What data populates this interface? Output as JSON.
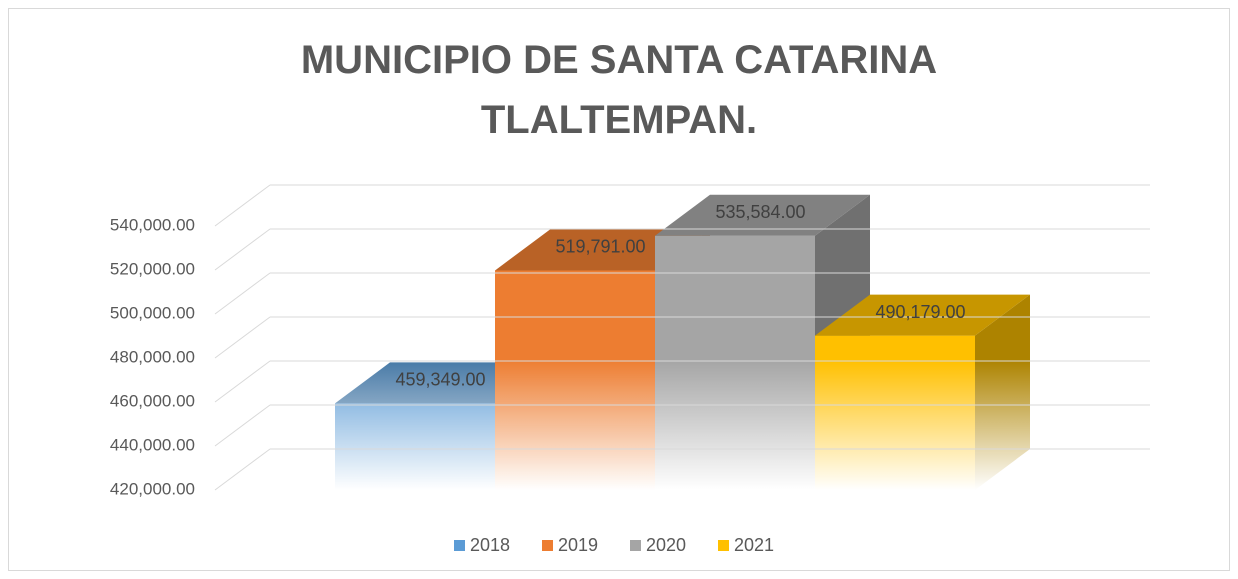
{
  "chart_data": {
    "type": "bar3d",
    "title": "MUNICIPIO DE SANTA CATARINA TLALTEMPAN.",
    "series": [
      {
        "name": "2018",
        "color": "#5b9bd5",
        "values": [
          459349
        ],
        "value_labels": [
          "459,349.00"
        ]
      },
      {
        "name": "2019",
        "color": "#ed7d31",
        "values": [
          519791
        ],
        "value_labels": [
          "519,791.00"
        ]
      },
      {
        "name": "2020",
        "color": "#a5a5a5",
        "values": [
          535584
        ],
        "value_labels": [
          "535,584.00"
        ]
      },
      {
        "name": "2021",
        "color": "#ffc000",
        "values": [
          490179
        ],
        "value_labels": [
          "490,179.00"
        ]
      }
    ],
    "ylim": [
      420000,
      540000
    ],
    "yticks": [
      {
        "value": 420000,
        "label": "420,000.00"
      },
      {
        "value": 440000,
        "label": "440,000.00"
      },
      {
        "value": 460000,
        "label": "460,000.00"
      },
      {
        "value": 480000,
        "label": "480,000.00"
      },
      {
        "value": 500000,
        "label": "500,000.00"
      },
      {
        "value": 520000,
        "label": "520,000.00"
      },
      {
        "value": 540000,
        "label": "540,000.00"
      }
    ],
    "grid": true,
    "legend": "bottom"
  }
}
